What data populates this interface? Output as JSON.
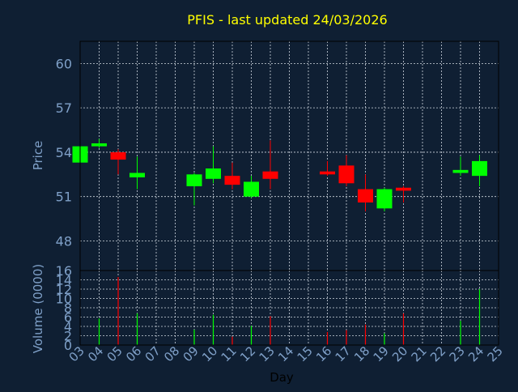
{
  "chart_data": {
    "type": "candlestick",
    "title": "PFIS - last updated 24/03/2026",
    "xlabel": "Day",
    "colors": {
      "background": "#0f1f33",
      "title": "#ffff00",
      "axis_text": "#7fa0c8",
      "grid": "#d0d8e0",
      "frame": "#000000",
      "up": "#00ff00",
      "down": "#ff0000"
    },
    "x_ticks": [
      "03",
      "04",
      "05",
      "06",
      "07",
      "08",
      "09",
      "10",
      "11",
      "12",
      "13",
      "14",
      "15",
      "16",
      "17",
      "18",
      "19",
      "20",
      "21",
      "22",
      "23",
      "24",
      "25"
    ],
    "price_panel": {
      "ylabel": "Price",
      "ylim": [
        46,
        61.5
      ],
      "y_ticks": [
        48,
        51,
        54,
        57,
        60
      ],
      "grid": true
    },
    "volume_panel": {
      "ylabel": "Volume (0000)",
      "ylim": [
        0,
        16
      ],
      "y_ticks": [
        0,
        2,
        4,
        6,
        8,
        10,
        12,
        14,
        16
      ],
      "grid": true
    },
    "candles": [
      {
        "day": 3,
        "open": 53.3,
        "high": 54.4,
        "low": 53.3,
        "close": 54.4,
        "volume": 0
      },
      {
        "day": 4,
        "open": 54.4,
        "high": 54.9,
        "low": 54.3,
        "close": 54.6,
        "volume": 5.7
      },
      {
        "day": 5,
        "open": 54.0,
        "high": 54.2,
        "low": 52.5,
        "close": 53.5,
        "volume": 14.6
      },
      {
        "day": 6,
        "open": 52.3,
        "high": 53.7,
        "low": 51.5,
        "close": 52.6,
        "volume": 6.8
      },
      {
        "day": 9,
        "open": 51.7,
        "high": 52.6,
        "low": 50.4,
        "close": 52.5,
        "volume": 3.3
      },
      {
        "day": 10,
        "open": 52.2,
        "high": 54.4,
        "low": 51.9,
        "close": 52.9,
        "volume": 6.5
      },
      {
        "day": 11,
        "open": 52.4,
        "high": 53.3,
        "low": 51.5,
        "close": 51.8,
        "volume": 1.8
      },
      {
        "day": 12,
        "open": 51.0,
        "high": 52.4,
        "low": 50.9,
        "close": 52.0,
        "volume": 4.1
      },
      {
        "day": 13,
        "open": 52.7,
        "high": 54.8,
        "low": 51.5,
        "close": 52.2,
        "volume": 6.2
      },
      {
        "day": 16,
        "open": 52.7,
        "high": 53.4,
        "low": 52.4,
        "close": 52.5,
        "volume": 2.8
      },
      {
        "day": 17,
        "open": 53.1,
        "high": 53.8,
        "low": 51.7,
        "close": 51.9,
        "volume": 3.2
      },
      {
        "day": 18,
        "open": 51.5,
        "high": 52.5,
        "low": 50.0,
        "close": 50.6,
        "volume": 4.4
      },
      {
        "day": 19,
        "open": 50.2,
        "high": 51.6,
        "low": 50.0,
        "close": 51.5,
        "volume": 2.5
      },
      {
        "day": 20,
        "open": 51.6,
        "high": 51.7,
        "low": 50.6,
        "close": 51.4,
        "volume": 6.8
      },
      {
        "day": 23,
        "open": 52.6,
        "high": 53.7,
        "low": 52.4,
        "close": 52.8,
        "volume": 5.2
      },
      {
        "day": 24,
        "open": 52.4,
        "high": 53.8,
        "low": 51.7,
        "close": 53.4,
        "volume": 12.0
      }
    ]
  }
}
